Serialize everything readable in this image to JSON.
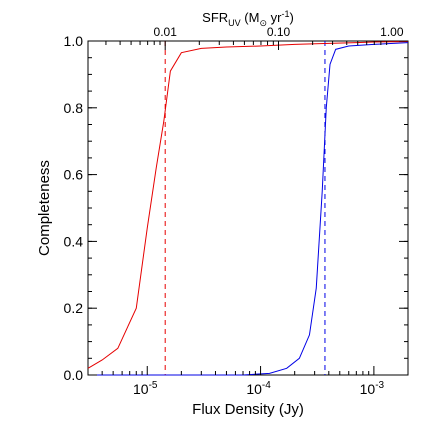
{
  "chart_data": {
    "type": "line",
    "xlabel": "Flux Density (Jy)",
    "ylabel": "Completeness",
    "top_axis_label": "SFR_UV (M_⊙ yr⁻¹)",
    "x_scale": "log",
    "xlim": [
      3e-06,
      0.002
    ],
    "ylim": [
      0,
      1.0
    ],
    "y_ticks": [
      "0.0",
      "0.2",
      "0.4",
      "0.6",
      "0.8",
      "1.0"
    ],
    "x_ticks": [
      {
        "value": 1e-05,
        "base": "10",
        "exp": "-5"
      },
      {
        "value": 0.0001,
        "base": "10",
        "exp": "-4"
      },
      {
        "value": 0.001,
        "base": "10",
        "exp": "-3"
      }
    ],
    "top_ticks": [
      {
        "value": 0.01,
        "label": "0.01",
        "flux": 1.44e-06
      },
      {
        "value": 0.1,
        "label": "0.10",
        "flux": 1.44e-05
      },
      {
        "value": 1.0,
        "label": "1.00",
        "flux": 0.000144
      }
    ],
    "grid": false,
    "legend": "none",
    "series": [
      {
        "color": "#e60000",
        "points": [
          [
            3e-06,
            0.02
          ],
          [
            4e-06,
            0.045
          ],
          [
            5.5e-06,
            0.08
          ],
          [
            8e-06,
            0.2
          ],
          [
            1e-05,
            0.44
          ],
          [
            1.2e-05,
            0.62
          ],
          [
            1.4e-05,
            0.76
          ],
          [
            1.6e-05,
            0.91
          ],
          [
            2e-05,
            0.965
          ],
          [
            3e-05,
            0.978
          ],
          [
            5e-05,
            0.982
          ],
          [
            0.0001,
            0.985
          ],
          [
            0.0002,
            0.99
          ],
          [
            0.0004,
            0.993
          ],
          [
            0.0007,
            0.995
          ],
          [
            0.001,
            0.997
          ],
          [
            0.002,
            0.998
          ]
        ]
      },
      {
        "color": "#0000e6",
        "points": [
          [
            3e-06,
            0.0
          ],
          [
            1e-05,
            0.0
          ],
          [
            4e-05,
            0.0
          ],
          [
            7e-05,
            0.0
          ],
          [
            0.00012,
            0.005
          ],
          [
            0.00017,
            0.02
          ],
          [
            0.00022,
            0.05
          ],
          [
            0.00027,
            0.12
          ],
          [
            0.00031,
            0.26
          ],
          [
            0.00035,
            0.55
          ],
          [
            0.00038,
            0.8
          ],
          [
            0.00041,
            0.93
          ],
          [
            0.00046,
            0.975
          ],
          [
            0.0006,
            0.985
          ],
          [
            0.001,
            0.99
          ],
          [
            0.002,
            0.995
          ]
        ]
      }
    ],
    "vlines": [
      {
        "x": 1.44e-05,
        "color": "#e60000"
      },
      {
        "x": 0.00037,
        "color": "#0000e6"
      }
    ]
  }
}
